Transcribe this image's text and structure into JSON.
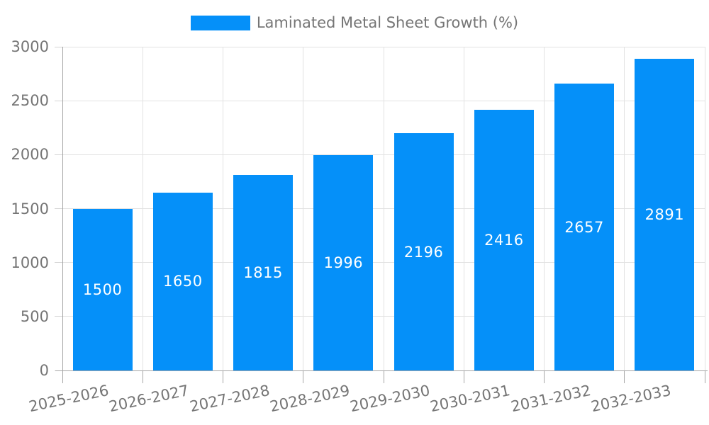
{
  "legend": {
    "label": "Laminated Metal Sheet Growth (%)"
  },
  "chart_data": {
    "type": "bar",
    "title": "",
    "categories": [
      "2025-2026",
      "2026-2027",
      "2027-2028",
      "2028-2029",
      "2029-2030",
      "2030-2031",
      "2031-2032",
      "2032-2033"
    ],
    "series": [
      {
        "name": "Laminated Metal Sheet Growth (%)",
        "values": [
          1500,
          1650,
          1815,
          1996,
          2196,
          2416,
          2657,
          2891
        ]
      }
    ],
    "value_labels": [
      "1500",
      "1650",
      "1815",
      "1996",
      "2196",
      "2416",
      "2657",
      "2891"
    ],
    "xlabel": "",
    "ylabel": "",
    "ylim": [
      0,
      3000
    ],
    "yticks": [
      0,
      500,
      1000,
      1500,
      2000,
      2500,
      3000
    ],
    "grid": true,
    "legend_position": "top-center",
    "value_label_position": "inside-center",
    "colors": {
      "bar": "#0590f9",
      "value_label": "#ffffff",
      "axis_text": "#757575",
      "grid_line": "#e2e2e2",
      "axis_line": "#a6a6a6",
      "y_tick_line": "#d5d5d5",
      "background": "#ffffff"
    }
  }
}
